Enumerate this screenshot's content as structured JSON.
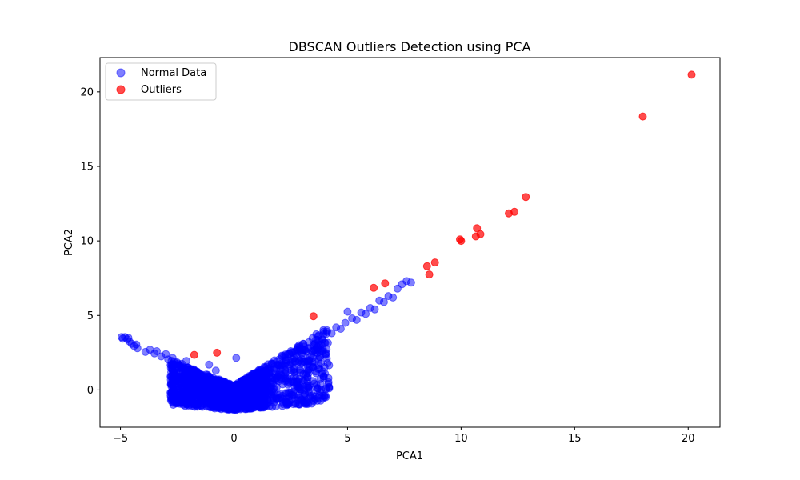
{
  "chart_data": {
    "type": "scatter",
    "title": "DBSCAN Outliers Detection using PCA",
    "xlabel": "PCA1",
    "ylabel": "PCA2",
    "xlim": [
      -5.9,
      21.4
    ],
    "ylim": [
      -2.5,
      22.3
    ],
    "xticks": [
      -5,
      0,
      5,
      10,
      15,
      20
    ],
    "yticks": [
      0,
      5,
      10,
      15,
      20
    ],
    "grid": false,
    "legend_position": "top-left",
    "series": [
      {
        "name": "Normal Data",
        "color": "#0000ff",
        "alpha": 0.5,
        "points": [
          [
            -4.95,
            3.55
          ],
          [
            -4.9,
            3.45
          ],
          [
            -4.8,
            3.55
          ],
          [
            -4.7,
            3.4
          ],
          [
            -4.65,
            3.5
          ],
          [
            -4.6,
            3.25
          ],
          [
            -4.5,
            3.1
          ],
          [
            -4.4,
            2.95
          ],
          [
            -4.3,
            3.05
          ],
          [
            -4.25,
            2.8
          ],
          [
            -3.9,
            2.55
          ],
          [
            -3.7,
            2.7
          ],
          [
            -3.5,
            2.45
          ],
          [
            -3.4,
            2.6
          ],
          [
            -3.2,
            2.25
          ],
          [
            -3.0,
            2.4
          ],
          [
            -2.9,
            2.05
          ],
          [
            -2.7,
            2.15
          ],
          [
            -2.5,
            1.85
          ],
          [
            -2.3,
            1.75
          ],
          [
            -2.1,
            1.95
          ],
          [
            -1.9,
            1.4
          ],
          [
            -1.7,
            1.25
          ],
          [
            -1.5,
            1.05
          ],
          [
            -1.3,
            0.8
          ],
          [
            -1.1,
            1.7
          ],
          [
            -1.0,
            0.55
          ],
          [
            -0.8,
            1.3
          ],
          [
            -0.7,
            0.3
          ],
          [
            -0.5,
            0.1
          ],
          [
            -0.3,
            -0.2
          ],
          [
            -0.2,
            -0.6
          ],
          [
            -0.1,
            -0.9
          ],
          [
            0.0,
            -1.1
          ],
          [
            0.05,
            -1.3
          ],
          [
            0.1,
            2.15
          ],
          [
            0.2,
            -0.7
          ],
          [
            0.3,
            -0.3
          ],
          [
            0.5,
            0.0
          ],
          [
            0.7,
            0.3
          ],
          [
            0.9,
            0.6
          ],
          [
            1.1,
            0.9
          ],
          [
            1.3,
            1.2
          ],
          [
            1.5,
            1.4
          ],
          [
            1.7,
            1.7
          ],
          [
            1.9,
            1.9
          ],
          [
            2.1,
            2.3
          ],
          [
            2.3,
            2.0
          ],
          [
            2.5,
            2.6
          ],
          [
            2.7,
            2.4
          ],
          [
            2.9,
            2.9
          ],
          [
            3.1,
            2.7
          ],
          [
            3.3,
            3.2
          ],
          [
            3.5,
            3.0
          ],
          [
            3.7,
            3.6
          ],
          [
            3.9,
            3.4
          ],
          [
            4.1,
            3.9
          ],
          [
            4.3,
            3.8
          ],
          [
            4.5,
            4.2
          ],
          [
            4.7,
            4.1
          ],
          [
            4.9,
            4.5
          ],
          [
            5.0,
            5.25
          ],
          [
            5.2,
            4.8
          ],
          [
            5.4,
            4.7
          ],
          [
            5.6,
            5.2
          ],
          [
            5.8,
            5.1
          ],
          [
            6.0,
            5.5
          ],
          [
            6.2,
            5.4
          ],
          [
            6.4,
            6.0
          ],
          [
            6.6,
            5.9
          ],
          [
            6.8,
            6.3
          ],
          [
            7.0,
            6.2
          ],
          [
            7.2,
            6.8
          ],
          [
            7.4,
            7.1
          ],
          [
            7.6,
            7.3
          ],
          [
            7.8,
            7.2
          ]
        ]
      },
      {
        "name": "Outliers",
        "color": "#ff0000",
        "alpha": 0.7,
        "points": [
          [
            -1.75,
            2.35
          ],
          [
            -0.75,
            2.5
          ],
          [
            3.5,
            4.95
          ],
          [
            6.15,
            6.85
          ],
          [
            6.65,
            7.15
          ],
          [
            8.5,
            8.3
          ],
          [
            8.6,
            7.75
          ],
          [
            8.85,
            8.55
          ],
          [
            9.95,
            10.1
          ],
          [
            10.0,
            10.0
          ],
          [
            10.65,
            10.3
          ],
          [
            10.7,
            10.85
          ],
          [
            10.85,
            10.45
          ],
          [
            12.1,
            11.85
          ],
          [
            12.35,
            11.95
          ],
          [
            12.85,
            12.95
          ],
          [
            18.0,
            18.35
          ],
          [
            20.15,
            21.15
          ]
        ]
      }
    ]
  }
}
